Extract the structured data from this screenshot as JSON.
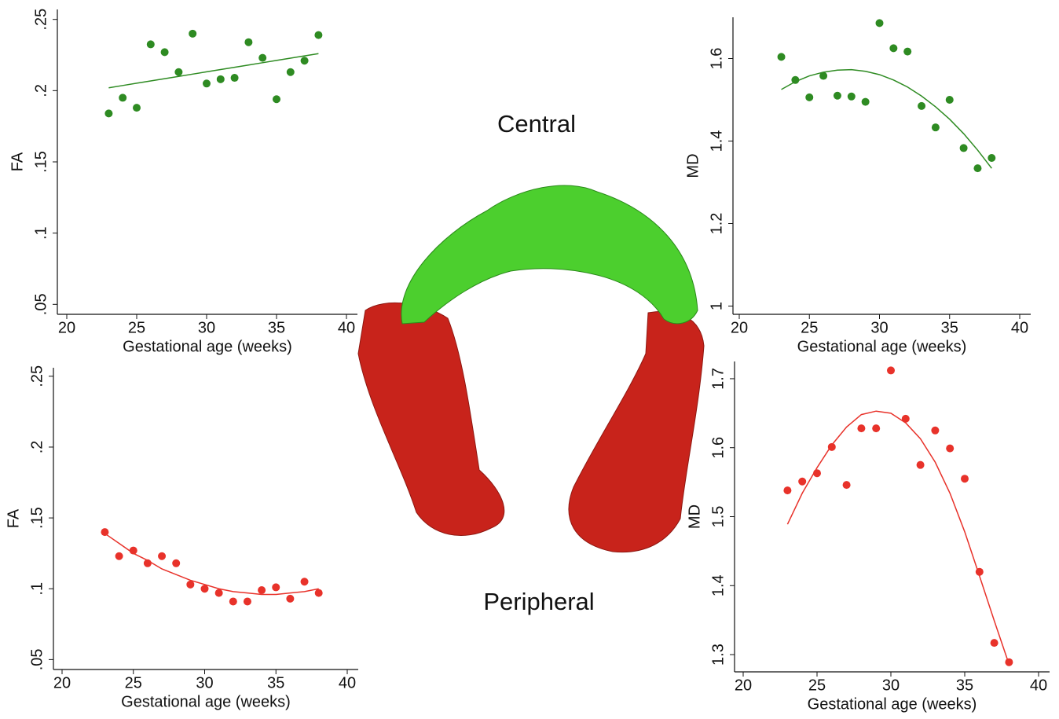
{
  "figure": {
    "top_label": "Central",
    "bottom_label": "Peripheral"
  },
  "chart_data": [
    {
      "type": "scatter",
      "xlabel": "Gestational age (weeks)",
      "ylabel": "FA",
      "color": "#2e8b22",
      "x": [
        23,
        24,
        25,
        26,
        27,
        28,
        29,
        30,
        31,
        32,
        33,
        34,
        35,
        36,
        37,
        38
      ],
      "values": [
        0.184,
        0.195,
        0.188,
        0.2325,
        0.227,
        0.213,
        0.24,
        0.205,
        0.208,
        0.209,
        0.234,
        0.223,
        0.194,
        0.213,
        0.221,
        0.239
      ],
      "fit": [
        0.202,
        0.2036,
        0.2052,
        0.2068,
        0.2084,
        0.21,
        0.2116,
        0.2132,
        0.2148,
        0.2164,
        0.218,
        0.2196,
        0.2212,
        0.2228,
        0.2244,
        0.226
      ],
      "xlim": [
        20,
        40
      ],
      "ylim": [
        0.043,
        0.257
      ],
      "xticks": [
        20,
        25,
        30,
        35,
        40
      ],
      "yticks": [
        {
          "value": 0.05,
          "label": ".05"
        },
        {
          "value": 0.1,
          "label": ".1"
        },
        {
          "value": 0.15,
          "label": ".15"
        },
        {
          "value": 0.2,
          "label": ".2"
        },
        {
          "value": 0.25,
          "label": ".25"
        }
      ]
    },
    {
      "type": "scatter",
      "xlabel": "Gestational age (weeks)",
      "ylabel": "MD",
      "color": "#2e8b22",
      "x": [
        23,
        24,
        25,
        26,
        27,
        28,
        29,
        30,
        31,
        32,
        33,
        34,
        35,
        36,
        37,
        38
      ],
      "values": [
        1.604,
        1.548,
        1.506,
        1.558,
        1.51,
        1.508,
        1.495,
        1.686,
        1.625,
        1.617,
        1.485,
        1.433,
        1.5,
        1.383,
        1.334,
        1.359
      ],
      "fit": [
        1.525,
        1.544,
        1.558,
        1.567,
        1.572,
        1.573,
        1.569,
        1.561,
        1.548,
        1.531,
        1.509,
        1.483,
        1.453,
        1.418,
        1.378,
        1.334
      ],
      "xlim": [
        20,
        40
      ],
      "ylim": [
        0.98,
        1.7
      ],
      "xticks": [
        20,
        25,
        30,
        35,
        40
      ],
      "yticks": [
        1,
        1.2,
        1.4,
        1.6
      ]
    },
    {
      "type": "scatter",
      "xlabel": "Gestational age (weeks)",
      "ylabel": "FA",
      "color": "#e8322a",
      "x": [
        23,
        24,
        25,
        26,
        27,
        28,
        29,
        30,
        31,
        32,
        33,
        34,
        35,
        36,
        37,
        38
      ],
      "values": [
        0.14,
        0.123,
        0.127,
        0.118,
        0.123,
        0.118,
        0.103,
        0.1,
        0.097,
        0.091,
        0.091,
        0.099,
        0.101,
        0.093,
        0.105,
        0.097
      ],
      "fit": [
        0.139,
        0.132,
        0.125,
        0.12,
        0.114,
        0.11,
        0.106,
        0.103,
        0.1,
        0.098,
        0.097,
        0.096,
        0.096,
        0.097,
        0.098,
        0.1
      ],
      "xlim": [
        20,
        40
      ],
      "ylim": [
        0.043,
        0.256
      ],
      "xticks": [
        20,
        25,
        30,
        35,
        40
      ],
      "yticks": [
        {
          "value": 0.05,
          "label": ".05"
        },
        {
          "value": 0.1,
          "label": ".1"
        },
        {
          "value": 0.15,
          "label": ".15"
        },
        {
          "value": 0.2,
          "label": ".2"
        },
        {
          "value": 0.25,
          "label": ".25"
        }
      ]
    },
    {
      "type": "scatter",
      "xlabel": "Gestational age (weeks)",
      "ylabel": "MD",
      "color": "#e8322a",
      "x": [
        23,
        24,
        25,
        26,
        27,
        28,
        29,
        30,
        31,
        32,
        33,
        34,
        35,
        36,
        37,
        38
      ],
      "values": [
        1.538,
        1.551,
        1.563,
        1.601,
        1.546,
        1.628,
        1.628,
        1.712,
        1.642,
        1.575,
        1.625,
        1.599,
        1.555,
        1.42,
        1.317,
        1.289
      ],
      "fit": [
        1.489,
        1.534,
        1.571,
        1.604,
        1.63,
        1.648,
        1.653,
        1.65,
        1.636,
        1.613,
        1.579,
        1.534,
        1.478,
        1.414,
        1.349,
        1.286
      ],
      "xlim": [
        20,
        40
      ],
      "ylim": [
        1.275,
        1.725
      ],
      "xticks": [
        20,
        25,
        30,
        35,
        40
      ],
      "yticks": [
        1.3,
        1.4,
        1.5,
        1.6,
        1.7
      ]
    }
  ]
}
